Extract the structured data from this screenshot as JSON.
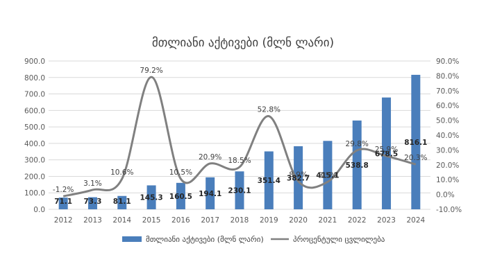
{
  "chart_data": {
    "type": "bar",
    "title": "მთლიანი აქტივები (მლნ ლარი)",
    "categories": [
      "2012",
      "2013",
      "2014",
      "2015",
      "2016",
      "2017",
      "2018",
      "2019",
      "2020",
      "2021",
      "2022",
      "2023",
      "2024"
    ],
    "series": [
      {
        "name": "მთლიანი აქტივები (მლნ ლარი)",
        "type": "bar",
        "axis": "left",
        "values": [
          71.1,
          73.3,
          81.1,
          145.3,
          160.5,
          194.1,
          230.1,
          351.4,
          382.7,
          415.1,
          538.8,
          678.5,
          816.1
        ],
        "labels": [
          "71.1",
          "73.3",
          "81.1",
          "145.3",
          "160.5",
          "194.1",
          "230.1",
          "351.4",
          "382.7",
          "415.1",
          "538.8",
          "678.5",
          "816.1"
        ],
        "color": "#4a7ebb"
      },
      {
        "name": "პროცენტული ცვლილება",
        "type": "line",
        "axis": "right",
        "values": [
          -1.2,
          3.1,
          10.6,
          79.2,
          10.5,
          20.9,
          18.5,
          52.8,
          8.9,
          8.5,
          29.8,
          25.9,
          20.3
        ],
        "labels": [
          "-1.2%",
          "3.1%",
          "10.6%",
          "79.2%",
          "10.5%",
          "20.9%",
          "18.5%",
          "52.8%",
          "8.9%",
          "8.5%",
          "29.8%",
          "25.9%",
          "20.3%"
        ],
        "color": "#808080"
      }
    ],
    "y_left": {
      "min": 0,
      "max": 900,
      "ticks": [
        "0.0",
        "100.0",
        "200.0",
        "300.0",
        "400.0",
        "500.0",
        "600.0",
        "700.0",
        "800.0",
        "900.0"
      ]
    },
    "y_right": {
      "min": -10,
      "max": 90,
      "ticks": [
        "-10.0%",
        "0.0%",
        "10.0%",
        "20.0%",
        "30.0%",
        "40.0%",
        "50.0%",
        "60.0%",
        "70.0%",
        "80.0%",
        "90.0%"
      ]
    },
    "grid": true,
    "legend": "bottom"
  }
}
